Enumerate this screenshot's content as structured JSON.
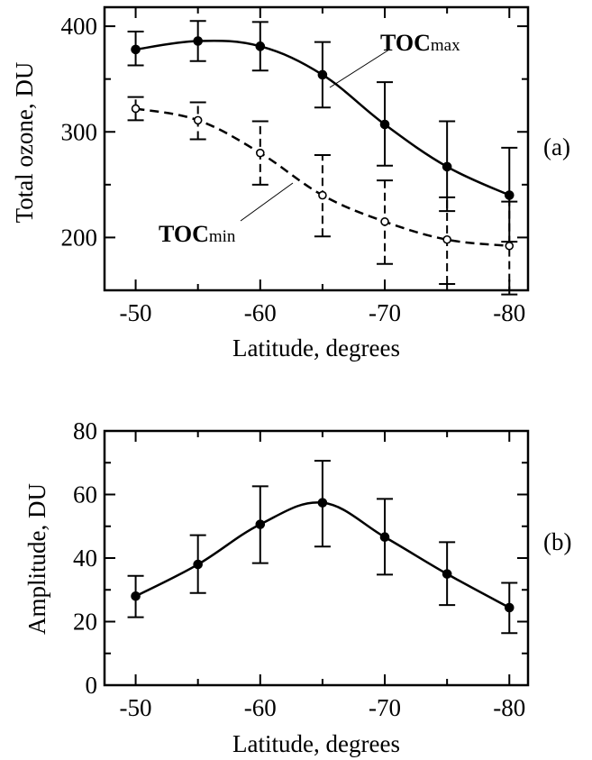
{
  "chart_data": [
    {
      "type": "line",
      "panel_tag": "(a)",
      "xlabel": "Latitude, degrees",
      "ylabel": "Total ozone, DU",
      "x": [
        -50,
        -55,
        -60,
        -65,
        -70,
        -75,
        -80
      ],
      "x_ticks": [
        -50,
        -60,
        -70,
        -80
      ],
      "y_ticks": [
        200,
        300,
        400
      ],
      "xlim": [
        -47.5,
        -81.5
      ],
      "ylim": [
        150,
        418
      ],
      "grid": false,
      "series": [
        {
          "name": "TOCmax",
          "label_main": "TOC",
          "label_sub": "max",
          "style": "solid",
          "marker": "filled-circle",
          "values": [
            378,
            386,
            381,
            354,
            307,
            267,
            240
          ],
          "err_low": [
            363,
            367,
            358,
            323,
            268,
            225,
            196
          ],
          "err_high": [
            395,
            405,
            404,
            385,
            347,
            310,
            285
          ]
        },
        {
          "name": "TOCmin",
          "label_main": "TOC",
          "label_sub": "min",
          "style": "dashed",
          "marker": "open-circle",
          "values": [
            322,
            311,
            280,
            240,
            215,
            198,
            192
          ],
          "err_low": [
            311,
            293,
            250,
            201,
            175,
            156,
            146
          ],
          "err_high": [
            333,
            328,
            310,
            278,
            254,
            238,
            234
          ]
        }
      ]
    },
    {
      "type": "line",
      "panel_tag": "(b)",
      "xlabel": "Latitude, degrees",
      "ylabel": "Amplitude, DU",
      "x": [
        -50,
        -55,
        -60,
        -65,
        -70,
        -75,
        -80
      ],
      "x_ticks": [
        -50,
        -60,
        -70,
        -80
      ],
      "y_ticks": [
        0,
        20,
        40,
        60,
        80
      ],
      "xlim": [
        -47.5,
        -81.5
      ],
      "ylim": [
        0,
        80
      ],
      "grid": false,
      "series": [
        {
          "name": "",
          "style": "solid",
          "marker": "filled-circle",
          "values": [
            28,
            38,
            50.6,
            57.4,
            46.6,
            35,
            24.4
          ],
          "err_low": [
            21.4,
            29,
            38.4,
            43.6,
            34.8,
            25.2,
            16.4
          ],
          "err_high": [
            34.4,
            47.2,
            62.6,
            70.6,
            58.6,
            45,
            32.2
          ]
        }
      ]
    }
  ]
}
